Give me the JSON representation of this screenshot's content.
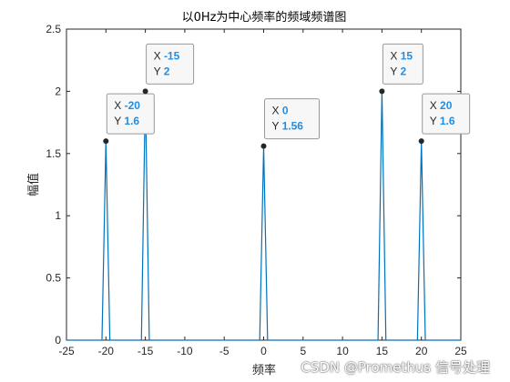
{
  "chart_data": {
    "type": "line",
    "title": "以0Hz为中心频率的频域频谱图",
    "xlabel": "频率",
    "ylabel": "幅值",
    "xlim": [
      -25,
      25
    ],
    "ylim": [
      0,
      2.5
    ],
    "xticks": [
      -25,
      -20,
      -15,
      -10,
      -5,
      0,
      5,
      10,
      15,
      20,
      25
    ],
    "yticks": [
      0,
      0.5,
      1,
      1.5,
      2,
      2.5
    ],
    "grid": false,
    "line_color": "#0072bd",
    "x": [
      -25,
      -20.5,
      -20,
      -19.5,
      -15.5,
      -15,
      -14.5,
      -0.5,
      0,
      0.5,
      14.5,
      15,
      15.5,
      19.5,
      20,
      20.5,
      25
    ],
    "y": [
      0,
      0,
      1.6,
      0,
      0,
      2,
      0,
      0,
      1.56,
      0,
      0,
      2,
      0,
      0,
      1.6,
      0,
      0
    ],
    "datatips": [
      {
        "x": -20,
        "y": 1.6,
        "x_label": "X",
        "y_label": "Y",
        "x_text": "-20",
        "y_text": "1.6"
      },
      {
        "x": -15,
        "y": 2,
        "x_label": "X",
        "y_label": "Y",
        "x_text": "-15",
        "y_text": "2"
      },
      {
        "x": 0,
        "y": 1.56,
        "x_label": "X",
        "y_label": "Y",
        "x_text": "0",
        "y_text": "1.56"
      },
      {
        "x": 15,
        "y": 2,
        "x_label": "X",
        "y_label": "Y",
        "x_text": "15",
        "y_text": "2"
      },
      {
        "x": 20,
        "y": 1.6,
        "x_label": "X",
        "y_label": "Y",
        "x_text": "20",
        "y_text": "1.6"
      }
    ]
  },
  "watermark": "CSDN @Promethus 信号处理"
}
